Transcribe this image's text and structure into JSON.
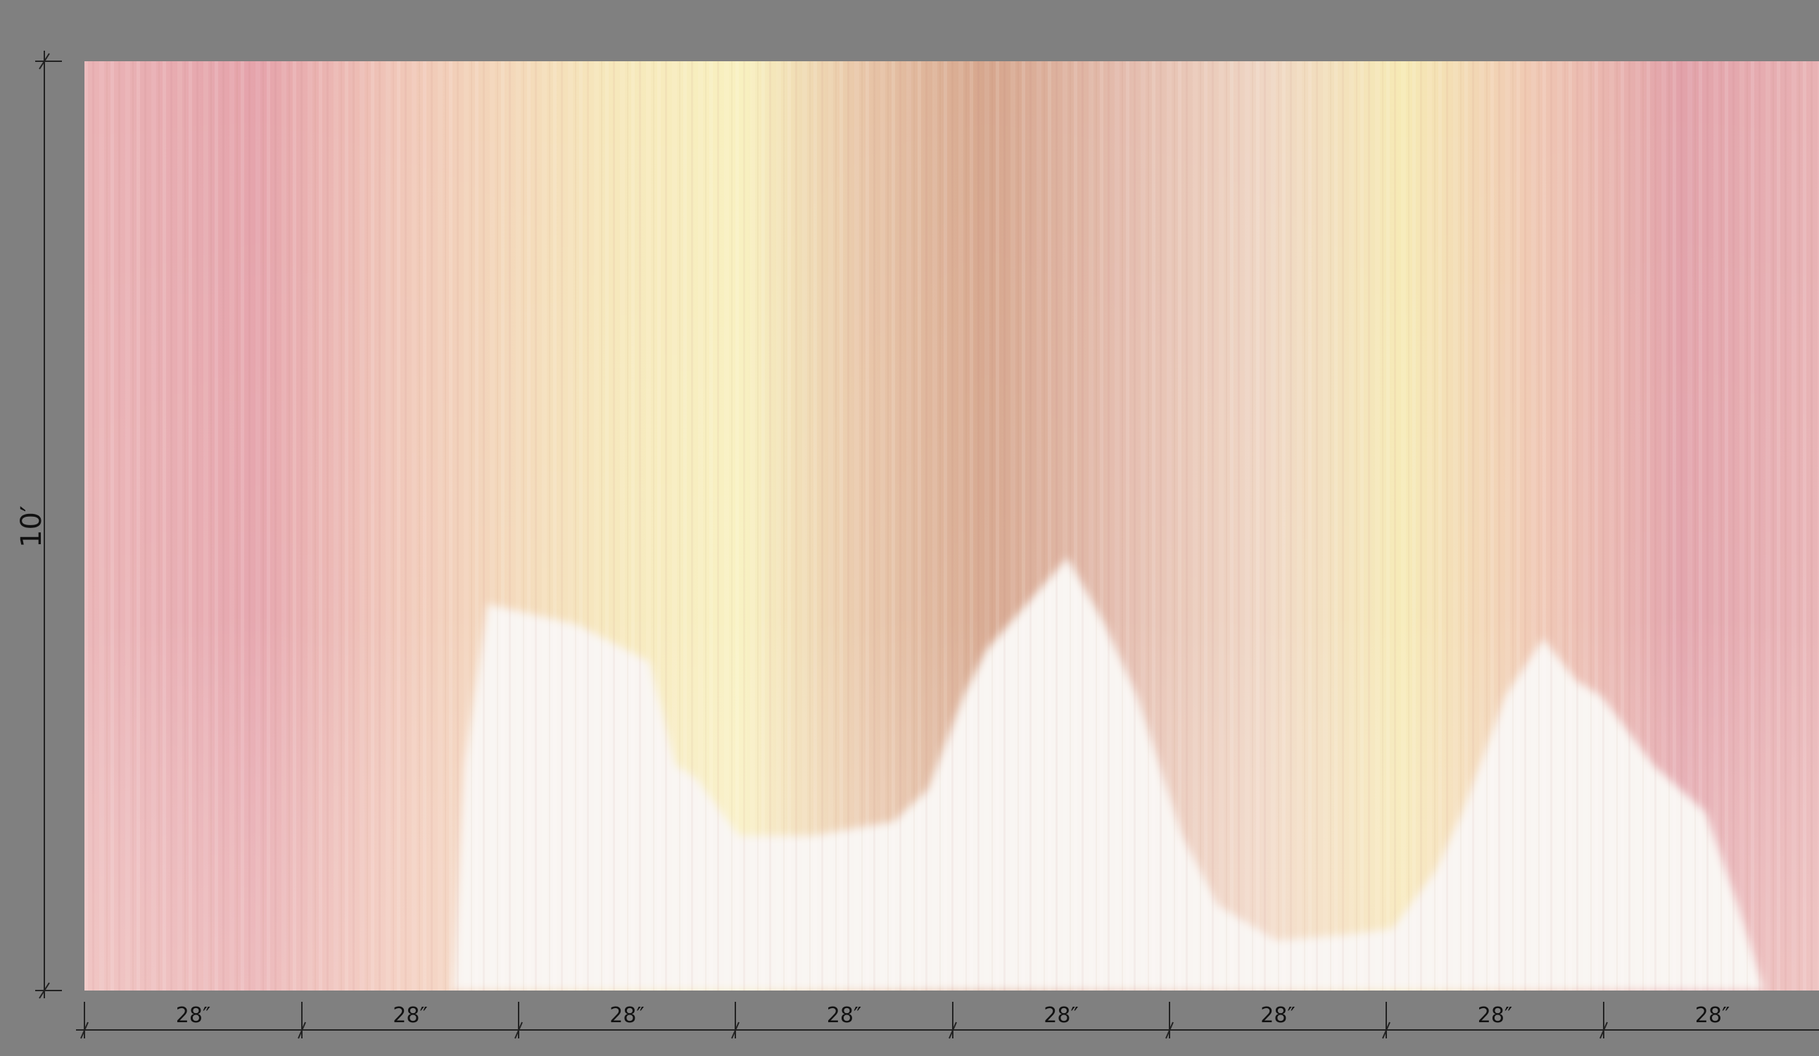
{
  "height_label": "10′",
  "panel_widths": [
    "28″",
    "28″",
    "28″",
    "28″",
    "28″",
    "28″",
    "28″",
    "28″"
  ],
  "colors": {
    "background": "#808080",
    "pink": "#e6a6ad",
    "peach": "#f2cdb6",
    "yellow": "#f7efbd",
    "tan": "#d6a68d",
    "base": "#f9f5f2"
  }
}
